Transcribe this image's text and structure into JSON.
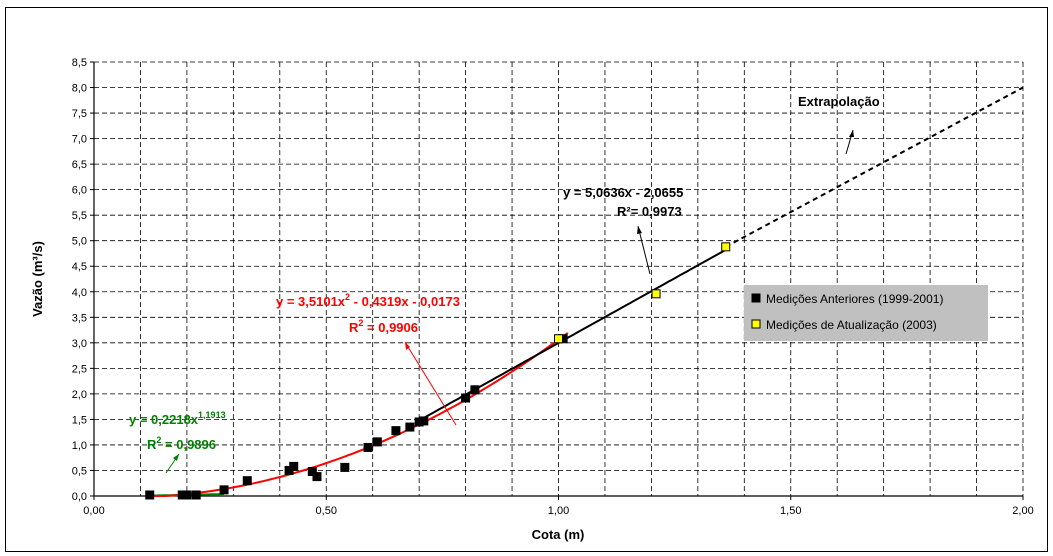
{
  "chart_data": {
    "type": "scatter",
    "xlabel": "Cota (m)",
    "ylabel": "Vazão (m³/s)",
    "xlim": [
      0,
      2
    ],
    "ylim": [
      0,
      8.5
    ],
    "x_ticks": [
      "0,00",
      "0,50",
      "1,00",
      "1,50",
      "2,00"
    ],
    "y_ticks": [
      "0,0",
      "0,5",
      "1,0",
      "1,5",
      "2,0",
      "2,5",
      "3,0",
      "3,5",
      "4,0",
      "4,5",
      "5,0",
      "5,5",
      "6,0",
      "6,5",
      "7,0",
      "7,5",
      "8,0",
      "8,5"
    ],
    "grid": true,
    "legend_position": "right",
    "series": [
      {
        "name": "Medições Anteriores (1999-2001)",
        "marker_color": "#000000",
        "x": [
          0.12,
          0.19,
          0.2,
          0.22,
          0.28,
          0.33,
          0.42,
          0.43,
          0.47,
          0.48,
          0.54,
          0.59,
          0.61,
          0.65,
          0.68,
          0.7,
          0.71,
          0.8,
          0.82,
          1.01
        ],
        "y": [
          0.02,
          0.02,
          0.02,
          0.02,
          0.12,
          0.3,
          0.5,
          0.58,
          0.48,
          0.38,
          0.56,
          0.95,
          1.06,
          1.28,
          1.35,
          1.45,
          1.47,
          1.92,
          2.08,
          3.08
        ]
      },
      {
        "name": "Medições de Atualização (2003)",
        "marker_color": "#ffff00",
        "x": [
          1.0,
          1.21,
          1.36
        ],
        "y": [
          3.08,
          3.96,
          4.88
        ]
      }
    ],
    "fits": [
      {
        "kind": "power",
        "color": "#008000",
        "equation_label": "y = 0,2218x",
        "equation_superscript": "1,1913",
        "r2_label": "R",
        "r2_superscript": "2",
        "r2_value": " = 0,9896",
        "x_range": [
          0.12,
          0.28
        ]
      },
      {
        "kind": "polynomial",
        "color": "#ff0000",
        "equation_part1": "y = 3,5101x",
        "equation_superscript": "2",
        "equation_part2": " - 0,4319x - 0,0173",
        "r2_label": "R",
        "r2_superscript": "2",
        "r2_value": " = 0,9906",
        "x_range": [
          0.12,
          1.02
        ]
      },
      {
        "kind": "linear",
        "color": "#000000",
        "equation_label": "y = 5,0636x - 2,0655",
        "r2_text": "R²= 0,9973",
        "x_range": [
          0.7,
          1.36
        ]
      }
    ],
    "extrapolation": {
      "label": "Extrapolação",
      "x": [
        1.36,
        2.0
      ],
      "y": [
        4.88,
        8.0
      ]
    }
  }
}
